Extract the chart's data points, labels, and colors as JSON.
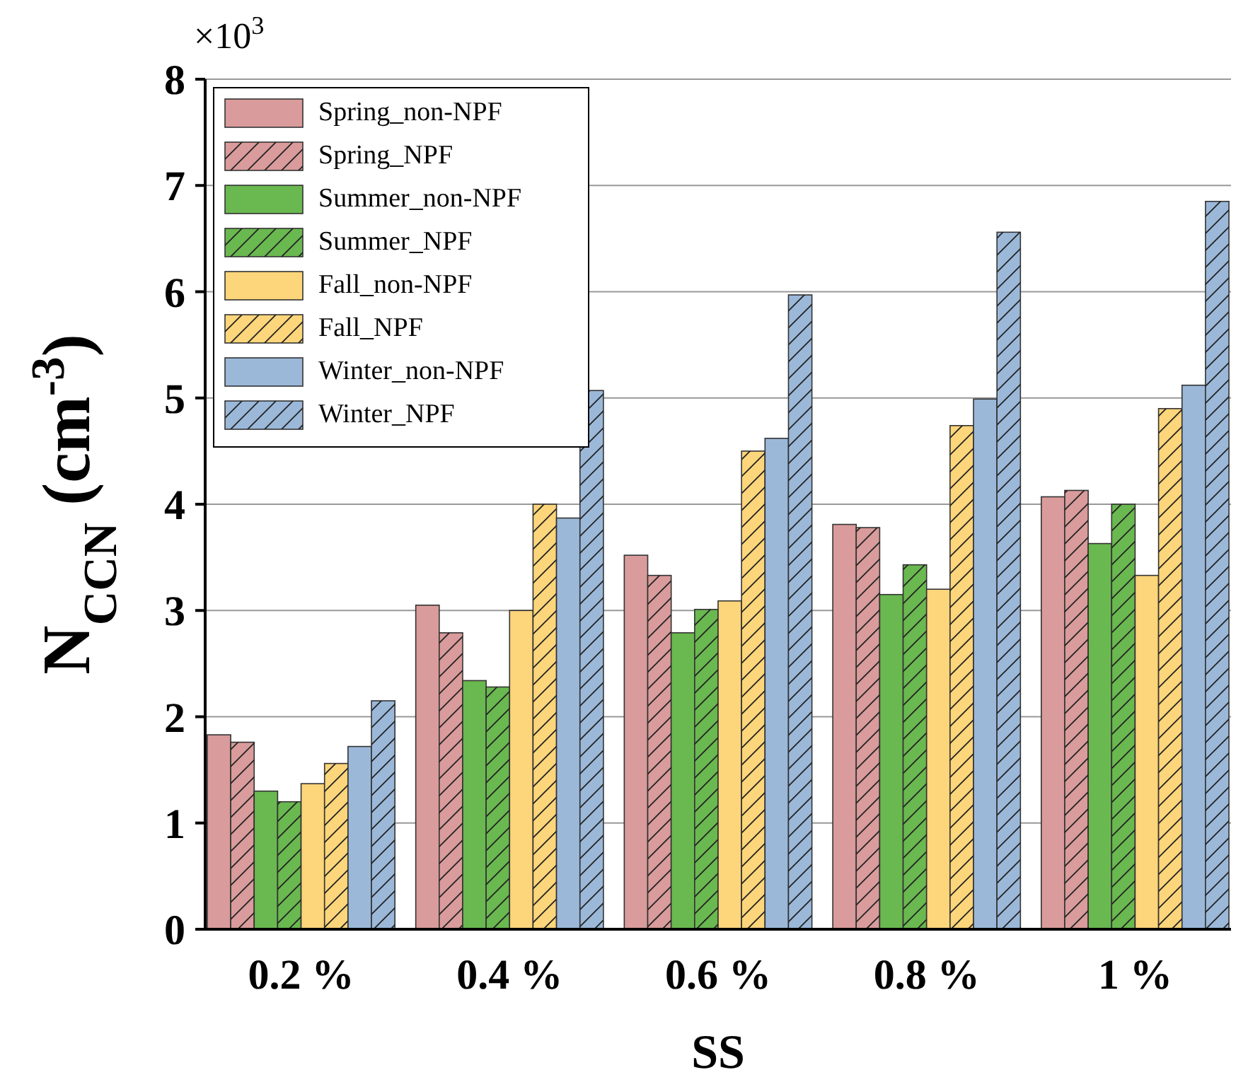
{
  "chart_data": {
    "type": "bar",
    "xlabel": "SS",
    "ylabel": "N$_{CCN}$ (cm$^{-3}$)",
    "annotations": [
      "×10$^{3}$"
    ],
    "categories": [
      "0.2 %",
      "0.4 %",
      "0.6 %",
      "0.8 %",
      "1 %"
    ],
    "series": [
      {
        "name": "Spring_non-NPF",
        "color": "#d99b9b",
        "values": [
          1.83,
          3.05,
          3.52,
          3.81,
          4.07
        ]
      },
      {
        "name": "Spring_NPF",
        "color": "#d99b9b",
        "values": [
          1.76,
          2.79,
          3.33,
          3.78,
          4.13
        ]
      },
      {
        "name": "Summer_non-NPF",
        "color": "#6ab850",
        "values": [
          1.3,
          2.34,
          2.79,
          3.15,
          3.63
        ]
      },
      {
        "name": "Summer_NPF",
        "color": "#6ab850",
        "values": [
          1.2,
          2.28,
          3.01,
          3.43,
          4.0
        ]
      },
      {
        "name": "Fall_non-NPF",
        "color": "#fdd57a",
        "values": [
          1.37,
          3.0,
          3.09,
          3.2,
          3.33
        ]
      },
      {
        "name": "Fall_NPF",
        "color": "#fdd57a",
        "values": [
          1.56,
          4.0,
          4.5,
          4.74,
          4.9
        ]
      },
      {
        "name": "Winter_non-NPF",
        "color": "#9bb8d9",
        "values": [
          1.72,
          3.87,
          4.62,
          4.99,
          5.12
        ]
      },
      {
        "name": "Winter_NPF",
        "color": "#9bb8d9",
        "values": [
          2.15,
          5.07,
          5.97,
          6.56,
          6.85
        ]
      }
    ],
    "ylim": [
      0,
      8
    ],
    "yticks": [
      0,
      1,
      2,
      3,
      4,
      5,
      6,
      7,
      8
    ],
    "grid": "y",
    "legend": "top left"
  }
}
